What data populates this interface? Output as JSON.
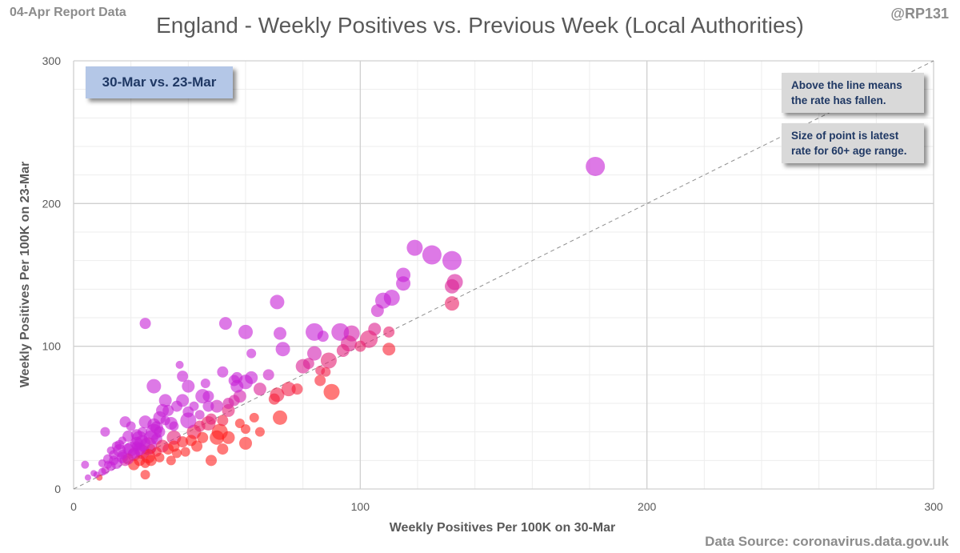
{
  "header": {
    "report_label": "04-Apr Report Data",
    "handle": "@RP131",
    "title": "England - Weekly Positives vs. Previous Week (Local Authorities)",
    "source": "Data Source: coronavirus.data.gov.uk"
  },
  "annotations": {
    "period": "30-Mar vs. 23-Mar",
    "note1_line1": "Above the line means",
    "note1_line2": "the rate has fallen.",
    "note2_line1": "Size of point is latest",
    "note2_line2": "rate for 60+ age range."
  },
  "colors": {
    "low_age_rate": "#c71fd6",
    "high_age_rate": "#ff1f1f",
    "grid": "#d9d9d9",
    "diagonal": "#8f8f8f"
  },
  "chart_data": {
    "type": "scatter",
    "title": "England - Weekly Positives vs. Previous Week (Local Authorities)",
    "xlabel": "Weekly Positives Per 100K on 30-Mar",
    "ylabel": "Weekly Positives Per 100K on 23-Mar",
    "xlim": [
      0,
      300
    ],
    "ylim": [
      0,
      300
    ],
    "xticks": [
      0,
      100,
      200,
      300
    ],
    "yticks": [
      0,
      100,
      200,
      300
    ],
    "grid": true,
    "reference_line": "y = x",
    "series": [
      {
        "points": [
          [
            182,
            226,
            24
          ],
          [
            132,
            160,
            24
          ],
          [
            125,
            164,
            24
          ],
          [
            119,
            169,
            20
          ],
          [
            133,
            145,
            20
          ],
          [
            132,
            142,
            18
          ],
          [
            115,
            150,
            18
          ],
          [
            115,
            144,
            18
          ],
          [
            132,
            130,
            18
          ],
          [
            108,
            132,
            20
          ],
          [
            111,
            134,
            20
          ],
          [
            106,
            125,
            16
          ],
          [
            71,
            131,
            18
          ],
          [
            105,
            112,
            16
          ],
          [
            110,
            110,
            14
          ],
          [
            110,
            98,
            16
          ],
          [
            97,
            109,
            20
          ],
          [
            103,
            105,
            22
          ],
          [
            96,
            102,
            20
          ],
          [
            93,
            110,
            22
          ],
          [
            87,
            107,
            14
          ],
          [
            84,
            110,
            22
          ],
          [
            84,
            95,
            18
          ],
          [
            89,
            90,
            20
          ],
          [
            90,
            68,
            20
          ],
          [
            86,
            83,
            12
          ],
          [
            88,
            82,
            12
          ],
          [
            80,
            86,
            18
          ],
          [
            75,
            70,
            18
          ],
          [
            73,
            98,
            18
          ],
          [
            72,
            109,
            16
          ],
          [
            72,
            50,
            18
          ],
          [
            71,
            66,
            18
          ],
          [
            68,
            80,
            14
          ],
          [
            65,
            70,
            16
          ],
          [
            62,
            78,
            16
          ],
          [
            60,
            110,
            18
          ],
          [
            60,
            75,
            18
          ],
          [
            62,
            95,
            12
          ],
          [
            58,
            65,
            16
          ],
          [
            57,
            78,
            14
          ],
          [
            57,
            72,
            16
          ],
          [
            54,
            55,
            16
          ],
          [
            53,
            116,
            16
          ],
          [
            52,
            82,
            14
          ],
          [
            54,
            36,
            16
          ],
          [
            51,
            40,
            20
          ],
          [
            50,
            36,
            18
          ],
          [
            50,
            58,
            16
          ],
          [
            52,
            28,
            14
          ],
          [
            48,
            20,
            14
          ],
          [
            47,
            46,
            18
          ],
          [
            47,
            65,
            14
          ],
          [
            45,
            65,
            18
          ],
          [
            42,
            40,
            18
          ],
          [
            43,
            30,
            14
          ],
          [
            40,
            54,
            14
          ],
          [
            40,
            48,
            20
          ],
          [
            40,
            72,
            16
          ],
          [
            38,
            62,
            16
          ],
          [
            38,
            79,
            14
          ],
          [
            37,
            87,
            10
          ],
          [
            35,
            36,
            18
          ],
          [
            34,
            46,
            16
          ],
          [
            33,
            55,
            14
          ],
          [
            32,
            62,
            16
          ],
          [
            30,
            50,
            16
          ],
          [
            31,
            55,
            16
          ],
          [
            28,
            72,
            18
          ],
          [
            29,
            43,
            16
          ],
          [
            28,
            40,
            20
          ],
          [
            27,
            36,
            18
          ],
          [
            26,
            30,
            22
          ],
          [
            25,
            116,
            14
          ],
          [
            25,
            47,
            16
          ],
          [
            24,
            26,
            18
          ],
          [
            23,
            35,
            20
          ],
          [
            22,
            32,
            16
          ],
          [
            21,
            24,
            16
          ],
          [
            20,
            28,
            18
          ],
          [
            19,
            37,
            14
          ],
          [
            18,
            47,
            14
          ],
          [
            18,
            20,
            14
          ],
          [
            17,
            22,
            14
          ],
          [
            16,
            27,
            16
          ],
          [
            15,
            18,
            14
          ],
          [
            14,
            24,
            12
          ],
          [
            13,
            16,
            12
          ],
          [
            12,
            21,
            12
          ],
          [
            11,
            40,
            12
          ],
          [
            10,
            18,
            10
          ],
          [
            10,
            12,
            10
          ],
          [
            9,
            8,
            8
          ],
          [
            8,
            10,
            8
          ],
          [
            7,
            11,
            8
          ],
          [
            5,
            8,
            8
          ],
          [
            4,
            17,
            10
          ],
          [
            25,
            10,
            12
          ],
          [
            60,
            42,
            12
          ],
          [
            56,
            62,
            14
          ],
          [
            58,
            46,
            12
          ],
          [
            47,
            58,
            14
          ],
          [
            44,
            52,
            12
          ],
          [
            36,
            58,
            14
          ],
          [
            35,
            44,
            12
          ],
          [
            30,
            40,
            14
          ],
          [
            32,
            48,
            12
          ],
          [
            29,
            35,
            14
          ],
          [
            27,
            28,
            12
          ],
          [
            22,
            38,
            14
          ],
          [
            20,
            44,
            12
          ],
          [
            23,
            20,
            14
          ],
          [
            21,
            17,
            14
          ],
          [
            36,
            25,
            12
          ],
          [
            38,
            33,
            14
          ],
          [
            33,
            28,
            14
          ],
          [
            30,
            22,
            12
          ],
          [
            19,
            28,
            14
          ],
          [
            16,
            31,
            12
          ],
          [
            26,
            23,
            18
          ],
          [
            24,
            32,
            20
          ],
          [
            28,
            45,
            16
          ],
          [
            31,
            30,
            16
          ],
          [
            44,
            44,
            14
          ],
          [
            48,
            49,
            14
          ],
          [
            42,
            58,
            12
          ],
          [
            46,
            74,
            12
          ],
          [
            56,
            76,
            14
          ],
          [
            65,
            40,
            12
          ],
          [
            70,
            63,
            14
          ],
          [
            63,
            50,
            12
          ],
          [
            78,
            70,
            14
          ],
          [
            82,
            88,
            14
          ],
          [
            86,
            76,
            14
          ],
          [
            100,
            100,
            14
          ],
          [
            94,
            97,
            16
          ],
          [
            60,
            32,
            16
          ],
          [
            54,
            60,
            14
          ],
          [
            52,
            48,
            14
          ],
          [
            45,
            36,
            14
          ],
          [
            41,
            34,
            14
          ],
          [
            39,
            26,
            12
          ],
          [
            34,
            20,
            12
          ],
          [
            35,
            30,
            14
          ],
          [
            29,
            26,
            12
          ],
          [
            27,
            20,
            14
          ],
          [
            25,
            18,
            12
          ],
          [
            23,
            28,
            16
          ],
          [
            21,
            25,
            14
          ],
          [
            19,
            21,
            14
          ],
          [
            17,
            24,
            12
          ],
          [
            15,
            30,
            12
          ],
          [
            14,
            20,
            12
          ],
          [
            12,
            17,
            10
          ],
          [
            11,
            13,
            10
          ],
          [
            13,
            27,
            10
          ],
          [
            17,
            34,
            10
          ],
          [
            22,
            30,
            12
          ],
          [
            24,
            40,
            12
          ]
        ]
      }
    ]
  }
}
